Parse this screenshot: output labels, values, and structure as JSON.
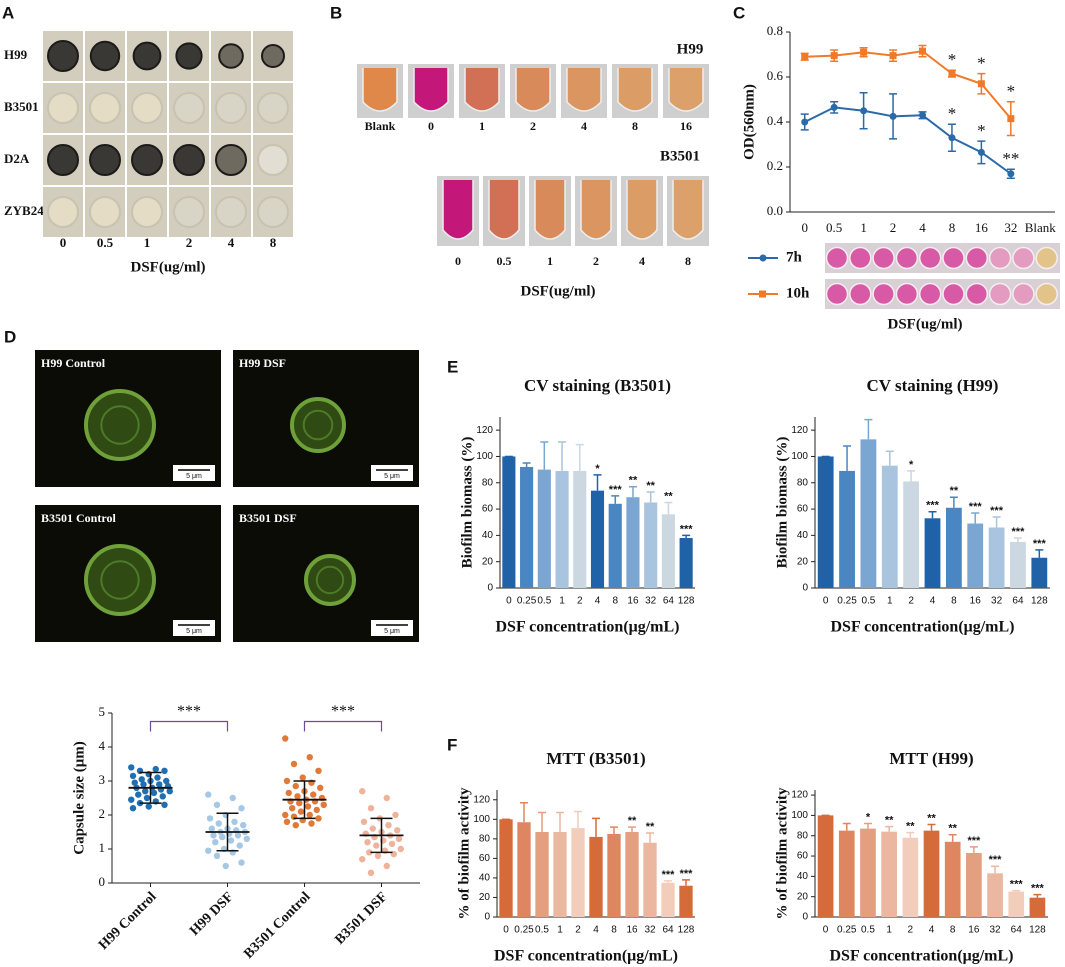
{
  "panel_labels": [
    "A",
    "B",
    "C",
    "D",
    "E",
    "F"
  ],
  "plates": {
    "rows": [
      "H99",
      "B3501",
      "D2A",
      "ZYB24"
    ],
    "columns": [
      "0",
      "0.5",
      "1",
      "2",
      "4",
      "8"
    ],
    "xlabel": "DSF(ug/ml)"
  },
  "tubes": {
    "groups": [
      {
        "name": "H99",
        "labels": [
          "Blank",
          "0",
          "1",
          "2",
          "4",
          "8",
          "16"
        ]
      },
      {
        "name": "B3501",
        "labels": [
          "0",
          "0.5",
          "1",
          "2",
          "4",
          "8"
        ]
      }
    ],
    "xlabel": "DSF(ug/ml)"
  },
  "micrographs": {
    "labels": [
      "H99 Control",
      "H99 DSF",
      "B3501 Control",
      "B3501 DSF"
    ],
    "scale_bar": "5 μm"
  },
  "chart_data": [
    {
      "type": "line",
      "ylabel": "OD(560nm)",
      "xlabel": "DSF(ug/ml)",
      "categories": [
        "0",
        "0.5",
        "1",
        "2",
        "4",
        "8",
        "16",
        "32",
        "Blank"
      ],
      "ylim": [
        0,
        0.8
      ],
      "yticks": [
        {
          "value": 0,
          "label": "0.0"
        },
        0.2,
        0.4,
        0.6,
        0.8
      ],
      "series": [
        {
          "name": "7h",
          "color": "#2a6aa8",
          "marker": "circle",
          "values": [
            0.4,
            0.465,
            0.45,
            0.425,
            0.43,
            0.33,
            0.265,
            0.17,
            null
          ],
          "errors": [
            0.035,
            0.025,
            0.08,
            0.1,
            0.015,
            0.06,
            0.05,
            0.02,
            null
          ],
          "annotations": [
            null,
            null,
            null,
            null,
            null,
            "*",
            "*",
            "**",
            null
          ]
        },
        {
          "name": "10h",
          "color": "#f07a2a",
          "marker": "square",
          "values": [
            0.69,
            0.695,
            0.71,
            0.695,
            0.715,
            0.615,
            0.57,
            0.415,
            null
          ],
          "errors": [
            0.015,
            0.025,
            0.02,
            0.025,
            0.025,
            0.015,
            0.045,
            0.075,
            null
          ],
          "annotations": [
            null,
            null,
            null,
            null,
            null,
            "*",
            "*",
            "*",
            null
          ]
        }
      ]
    },
    {
      "type": "strip",
      "ylabel": "Capsule size (μm)",
      "categories": [
        "H99 Control",
        "H99 DSF",
        "B3501 Control",
        "B3501 DSF"
      ],
      "ylim": [
        0,
        5
      ],
      "yticks": [
        0,
        1,
        2,
        3,
        4,
        5
      ],
      "colors": [
        "#1f6fb2",
        "#a6c8e4",
        "#e0793a",
        "#efb39b"
      ],
      "means": [
        2.8,
        1.5,
        2.45,
        1.4
      ],
      "sd": [
        0.45,
        0.55,
        0.55,
        0.5
      ],
      "significance": [
        "***",
        "***"
      ],
      "points": [
        [
          3.4,
          3.35,
          3.3,
          3.3,
          3.2,
          3.15,
          3.1,
          3.05,
          3.0,
          3.0,
          2.95,
          2.9,
          2.9,
          2.85,
          2.8,
          2.8,
          2.75,
          2.7,
          2.7,
          2.65,
          2.6,
          2.55,
          2.5,
          2.45,
          2.4,
          2.35,
          2.3,
          2.25,
          2.2
        ],
        [
          2.6,
          2.5,
          2.3,
          2.2,
          2.0,
          1.9,
          1.8,
          1.75,
          1.7,
          1.6,
          1.6,
          1.55,
          1.5,
          1.5,
          1.45,
          1.4,
          1.4,
          1.35,
          1.3,
          1.25,
          1.2,
          1.1,
          1.0,
          0.95,
          0.9,
          0.8,
          0.6,
          0.5
        ],
        [
          4.25,
          3.7,
          3.5,
          3.3,
          3.1,
          3.0,
          2.95,
          2.85,
          2.8,
          2.7,
          2.65,
          2.6,
          2.55,
          2.5,
          2.45,
          2.4,
          2.4,
          2.35,
          2.3,
          2.25,
          2.2,
          2.15,
          2.1,
          2.0,
          2.0,
          1.95,
          1.9,
          1.85,
          1.8,
          1.75,
          1.7
        ],
        [
          2.7,
          2.5,
          2.2,
          2.0,
          1.9,
          1.8,
          1.7,
          1.6,
          1.55,
          1.5,
          1.45,
          1.4,
          1.35,
          1.3,
          1.25,
          1.2,
          1.15,
          1.1,
          1.0,
          0.95,
          0.9,
          0.85,
          0.8,
          0.7,
          0.5,
          0.3
        ]
      ]
    },
    {
      "type": "bar",
      "title": "CV staining (B3501)",
      "ylabel": "Biofilm biomass (%)",
      "xlabel": "DSF concentration(μg/mL)",
      "categories": [
        "0",
        "0.25",
        "0.5",
        "1",
        "2",
        "4",
        "8",
        "16",
        "32",
        "64",
        "128"
      ],
      "values": [
        100,
        92,
        90,
        89,
        89,
        74,
        64,
        69,
        65,
        56,
        38
      ],
      "errors": [
        0,
        3,
        21,
        22,
        20,
        12,
        6,
        8,
        8,
        9,
        2
      ],
      "annotations": [
        null,
        null,
        null,
        null,
        null,
        "*",
        "***",
        "**",
        "**",
        "**",
        "***"
      ],
      "colors": [
        "#2062a8",
        "#4a86c2",
        "#7ba6d2",
        "#a9c4de",
        "#cbd7e1",
        "#2062a8",
        "#4a86c2",
        "#7ba6d2",
        "#a9c4de",
        "#cbd7e1",
        "#2062a8"
      ],
      "ylim": [
        0,
        130
      ],
      "yticks": [
        0,
        20,
        40,
        60,
        80,
        100,
        120
      ]
    },
    {
      "type": "bar",
      "title": "CV staining (H99)",
      "ylabel": "Biofilm biomass (%)",
      "xlabel": "DSF concentration(μg/mL)",
      "categories": [
        "0",
        "0.25",
        "0.5",
        "1",
        "2",
        "4",
        "8",
        "16",
        "32",
        "64",
        "128"
      ],
      "values": [
        100,
        89,
        113,
        93,
        81,
        53,
        61,
        49,
        46,
        35,
        23
      ],
      "errors": [
        0,
        19,
        15,
        11,
        8,
        5,
        8,
        8,
        8,
        3,
        6
      ],
      "annotations": [
        null,
        null,
        null,
        null,
        "*",
        "***",
        "**",
        "***",
        "***",
        "***",
        "***"
      ],
      "colors": [
        "#2062a8",
        "#4a86c2",
        "#7ba6d2",
        "#a9c4de",
        "#cbd7e1",
        "#2062a8",
        "#4a86c2",
        "#7ba6d2",
        "#a9c4de",
        "#cbd7e1",
        "#2062a8"
      ],
      "ylim": [
        0,
        130
      ],
      "yticks": [
        0,
        20,
        40,
        60,
        80,
        100,
        120
      ]
    },
    {
      "type": "bar",
      "title": "MTT (B3501)",
      "ylabel": "% of biofilm activity",
      "xlabel": "DSF concentration(μg/mL)",
      "categories": [
        "0",
        "0.25",
        "0.5",
        "1",
        "2",
        "4",
        "8",
        "16",
        "32",
        "64",
        "128"
      ],
      "values": [
        100,
        97,
        87,
        87,
        91,
        82,
        85,
        87,
        76,
        35,
        32
      ],
      "errors": [
        0,
        20,
        20,
        20,
        17,
        19,
        7,
        5,
        10,
        2,
        6
      ],
      "annotations": [
        null,
        null,
        null,
        null,
        null,
        null,
        null,
        "**",
        "**",
        "***",
        "***"
      ],
      "colors": [
        "#d66b3a",
        "#de8660",
        "#e49e80",
        "#ebb7a0",
        "#f2cdbc",
        "#d66b3a",
        "#de8660",
        "#e49e80",
        "#ebb7a0",
        "#f2cdbc",
        "#d66b3a"
      ],
      "ylim": [
        0,
        130
      ],
      "yticks": [
        0,
        20,
        40,
        60,
        80,
        100,
        120
      ]
    },
    {
      "type": "bar",
      "title": "MTT (H99)",
      "ylabel": "% of biofilm activity",
      "xlabel": "DSF concentration(μg/mL)",
      "categories": [
        "0",
        "0.25",
        "0.5",
        "1",
        "2",
        "4",
        "8",
        "16",
        "32",
        "64",
        "128"
      ],
      "values": [
        100,
        85,
        87,
        84,
        78,
        85,
        74,
        63,
        43,
        25,
        19
      ],
      "errors": [
        0,
        7,
        5,
        5,
        5,
        6,
        7,
        6,
        7,
        1,
        3
      ],
      "annotations": [
        null,
        null,
        "*",
        "**",
        "**",
        "**",
        "**",
        "***",
        "***",
        "***",
        "***"
      ],
      "colors": [
        "#d66b3a",
        "#de8660",
        "#e49e80",
        "#ebb7a0",
        "#f2cdbc",
        "#d66b3a",
        "#de8660",
        "#e49e80",
        "#ebb7a0",
        "#f2cdbc",
        "#d66b3a"
      ],
      "ylim": [
        0,
        125
      ],
      "yticks": [
        0,
        20,
        40,
        60,
        80,
        100,
        120
      ]
    }
  ]
}
